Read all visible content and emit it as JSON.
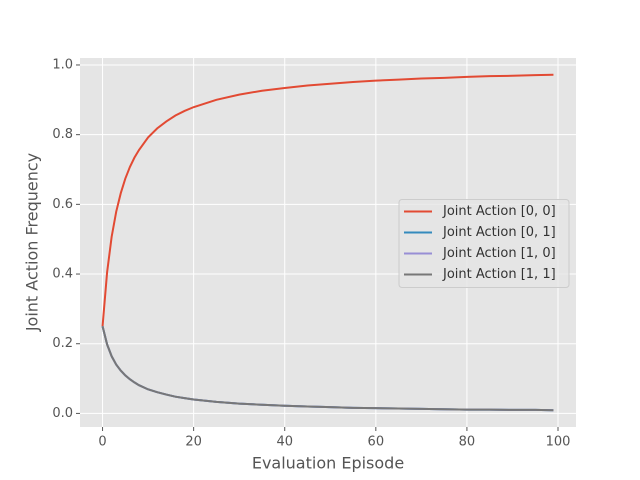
{
  "chart_data": {
    "type": "line",
    "x_label": "Evaluation Episode",
    "y_label": "Joint Action Frequency",
    "x": [
      0,
      1,
      2,
      3,
      4,
      5,
      6,
      7,
      8,
      10,
      12,
      14,
      16,
      18,
      20,
      25,
      30,
      35,
      40,
      45,
      50,
      55,
      60,
      65,
      70,
      75,
      80,
      85,
      90,
      95,
      99
    ],
    "series": [
      {
        "name": "Joint Action [0, 0]",
        "color": "#E24A33",
        "values": [
          0.25,
          0.405,
          0.507,
          0.579,
          0.632,
          0.674,
          0.707,
          0.734,
          0.756,
          0.792,
          0.818,
          0.838,
          0.855,
          0.868,
          0.879,
          0.9,
          0.915,
          0.926,
          0.934,
          0.941,
          0.946,
          0.951,
          0.955,
          0.958,
          0.961,
          0.963,
          0.966,
          0.968,
          0.969,
          0.971,
          0.972
        ]
      },
      {
        "name": "Joint Action [0, 1]",
        "color": "#348ABD",
        "values": [
          0.25,
          0.198,
          0.164,
          0.14,
          0.123,
          0.109,
          0.098,
          0.089,
          0.081,
          0.069,
          0.061,
          0.054,
          0.048,
          0.044,
          0.04,
          0.033,
          0.028,
          0.025,
          0.022,
          0.02,
          0.018,
          0.016,
          0.015,
          0.014,
          0.013,
          0.012,
          0.011,
          0.011,
          0.01,
          0.01,
          0.009
        ]
      },
      {
        "name": "Joint Action [1, 0]",
        "color": "#988ED5",
        "values": [
          0.25,
          0.198,
          0.164,
          0.14,
          0.123,
          0.109,
          0.098,
          0.089,
          0.081,
          0.069,
          0.061,
          0.054,
          0.048,
          0.044,
          0.04,
          0.033,
          0.028,
          0.025,
          0.022,
          0.02,
          0.018,
          0.016,
          0.015,
          0.014,
          0.013,
          0.012,
          0.011,
          0.011,
          0.01,
          0.01,
          0.009
        ]
      },
      {
        "name": "Joint Action [1, 1]",
        "color": "#777777",
        "values": [
          0.25,
          0.198,
          0.164,
          0.14,
          0.123,
          0.109,
          0.098,
          0.089,
          0.081,
          0.069,
          0.061,
          0.054,
          0.048,
          0.044,
          0.04,
          0.033,
          0.028,
          0.025,
          0.022,
          0.02,
          0.018,
          0.016,
          0.015,
          0.014,
          0.013,
          0.012,
          0.011,
          0.011,
          0.01,
          0.01,
          0.009
        ]
      }
    ],
    "xlim": [
      -4.95,
      103.95
    ],
    "ylim": [
      -0.039,
      1.02
    ],
    "xticks": [
      0,
      20,
      40,
      60,
      80,
      100
    ],
    "yticks": [
      {
        "value": 0,
        "label": "0.0"
      },
      0.2,
      0.4,
      0.6,
      0.8,
      {
        "value": 1,
        "label": "1.0"
      }
    ],
    "grid": true,
    "legend": "center right"
  }
}
